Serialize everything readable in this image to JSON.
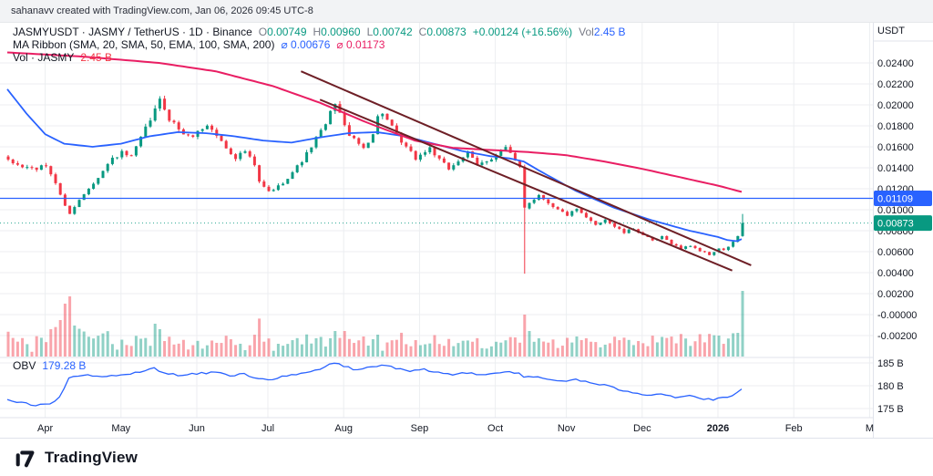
{
  "attribution": "sahanavv created with TradingView.com, Jan 06, 2026 09:45 UTC-8",
  "legend": {
    "symbol": {
      "title": "JASMYUSDT · JASMY / TetherUS · 1D · Binance",
      "ohlc": [
        {
          "k": "O",
          "v": "0.00749"
        },
        {
          "k": "H",
          "v": "0.00960"
        },
        {
          "k": "L",
          "v": "0.00742"
        },
        {
          "k": "C",
          "v": "0.00873"
        }
      ],
      "change": "+0.00124 (+16.56%)",
      "vol_label": "Vol",
      "vol_value": "2.45 B"
    },
    "ma_ribbon": {
      "title": "MA Ribbon (SMA, 20, SMA, 50, EMA, 100, SMA, 200)",
      "avg_1": "⌀ 0.00676",
      "avg_2": "⌀ 0.01173"
    },
    "volume": {
      "title": "Vol · JASMY",
      "value": "2.45 B"
    },
    "obv": {
      "title": "OBV",
      "value": "179.28 B"
    }
  },
  "axes": {
    "price": {
      "unit": "USDT",
      "ticks": [
        {
          "label": "0.02400",
          "v": 0.024
        },
        {
          "label": "0.02200",
          "v": 0.022
        },
        {
          "label": "0.02000",
          "v": 0.02
        },
        {
          "label": "0.01800",
          "v": 0.018
        },
        {
          "label": "0.01600",
          "v": 0.016
        },
        {
          "label": "0.01400",
          "v": 0.014
        },
        {
          "label": "0.01200",
          "v": 0.012
        },
        {
          "label": "0.01000",
          "v": 0.01
        },
        {
          "label": "0.00800",
          "v": 0.008
        },
        {
          "label": "0.00600",
          "v": 0.006
        },
        {
          "label": "0.00400",
          "v": 0.004
        },
        {
          "label": "0.00200",
          "v": 0.002
        },
        {
          "label": "-0.00000",
          "v": 0.0
        },
        {
          "label": "-0.00200",
          "v": -0.002
        }
      ],
      "badges": [
        {
          "text": "0.01109",
          "price": 0.01109,
          "color": "#2962ff"
        },
        {
          "text": "0.00873",
          "price": 0.00873,
          "color": "#089981"
        }
      ]
    },
    "obv_ticks": [
      {
        "label": "185 B",
        "v": 185
      },
      {
        "label": "180 B",
        "v": 180
      },
      {
        "label": "175 B",
        "v": 175
      }
    ],
    "time": [
      {
        "label": "Apr",
        "i": 8
      },
      {
        "label": "May",
        "i": 24
      },
      {
        "label": "Jun",
        "i": 40
      },
      {
        "label": "Jul",
        "i": 55
      },
      {
        "label": "Aug",
        "i": 71
      },
      {
        "label": "Sep",
        "i": 87
      },
      {
        "label": "Oct",
        "i": 103
      },
      {
        "label": "Nov",
        "i": 118
      },
      {
        "label": "Dec",
        "i": 134
      },
      {
        "label": "2026",
        "i": 150,
        "year": true
      },
      {
        "label": "Feb",
        "i": 166
      },
      {
        "label": "M",
        "i": 182
      }
    ]
  },
  "chart_data": {
    "type": "candlestick+volume+obv",
    "symbol": "JASMYUSDT",
    "description": "JASMY / TetherUS",
    "interval": "1D",
    "exchange": "Binance",
    "candle_count": 156,
    "price_axis_range": [
      -0.0028,
      0.0256
    ],
    "ohlc_current": {
      "open": 0.00749,
      "high": 0.0096,
      "low": 0.00742,
      "close": 0.00873,
      "change": "+0.00124",
      "change_pct": "+16.56%",
      "volume": "2.45 B",
      "obv": "179.28 B"
    },
    "ma_ribbon_averages": [
      0.00676,
      0.01173
    ],
    "closes_anchors": [
      [
        0,
        0.0146
      ],
      [
        3,
        0.0141
      ],
      [
        6,
        0.0139
      ],
      [
        8,
        0.0142
      ],
      [
        10,
        0.0126
      ],
      [
        12,
        0.0103
      ],
      [
        13,
        0.0097
      ],
      [
        15,
        0.0109
      ],
      [
        17,
        0.0121
      ],
      [
        20,
        0.0137
      ],
      [
        22,
        0.0149
      ],
      [
        24,
        0.0154
      ],
      [
        26,
        0.015
      ],
      [
        28,
        0.0168
      ],
      [
        30,
        0.0186
      ],
      [
        32,
        0.0204
      ],
      [
        33,
        0.0197
      ],
      [
        34,
        0.0187
      ],
      [
        36,
        0.0177
      ],
      [
        38,
        0.0169
      ],
      [
        40,
        0.0174
      ],
      [
        42,
        0.0181
      ],
      [
        44,
        0.0171
      ],
      [
        46,
        0.0159
      ],
      [
        48,
        0.015
      ],
      [
        50,
        0.0156
      ],
      [
        52,
        0.0142
      ],
      [
        53,
        0.0126
      ],
      [
        55,
        0.0117
      ],
      [
        57,
        0.0122
      ],
      [
        59,
        0.0131
      ],
      [
        61,
        0.0141
      ],
      [
        63,
        0.0153
      ],
      [
        65,
        0.0168
      ],
      [
        67,
        0.0181
      ],
      [
        69,
        0.0203
      ],
      [
        70,
        0.0192
      ],
      [
        71,
        0.0179
      ],
      [
        73,
        0.0166
      ],
      [
        75,
        0.0159
      ],
      [
        77,
        0.0173
      ],
      [
        78,
        0.0188
      ],
      [
        79,
        0.0193
      ],
      [
        81,
        0.0178
      ],
      [
        83,
        0.0164
      ],
      [
        85,
        0.0154
      ],
      [
        86,
        0.0149
      ],
      [
        87,
        0.0152
      ],
      [
        89,
        0.0159
      ],
      [
        91,
        0.0147
      ],
      [
        93,
        0.0139
      ],
      [
        95,
        0.0147
      ],
      [
        97,
        0.0154
      ],
      [
        99,
        0.0142
      ],
      [
        101,
        0.0147
      ],
      [
        103,
        0.0152
      ],
      [
        105,
        0.0159
      ],
      [
        107,
        0.0146
      ],
      [
        108,
        0.0141
      ],
      [
        109,
        0.0102
      ],
      [
        110,
        0.0107
      ],
      [
        112,
        0.0114
      ],
      [
        114,
        0.0107
      ],
      [
        116,
        0.01
      ],
      [
        118,
        0.0095
      ],
      [
        120,
        0.01
      ],
      [
        122,
        0.0092
      ],
      [
        124,
        0.0086
      ],
      [
        126,
        0.0091
      ],
      [
        128,
        0.0084
      ],
      [
        130,
        0.0078
      ],
      [
        132,
        0.0082
      ],
      [
        134,
        0.0076
      ],
      [
        136,
        0.007
      ],
      [
        138,
        0.0074
      ],
      [
        140,
        0.0068
      ],
      [
        142,
        0.0063
      ],
      [
        144,
        0.0066
      ],
      [
        146,
        0.0061
      ],
      [
        148,
        0.0057
      ],
      [
        150,
        0.0063
      ],
      [
        151,
        0.0061
      ],
      [
        152,
        0.0065
      ],
      [
        153,
        0.0069
      ],
      [
        154,
        0.00749
      ],
      [
        155,
        0.00873
      ]
    ],
    "special_candles": {
      "109": {
        "o": 0.0141,
        "h": 0.0143,
        "l": 0.0039,
        "c": 0.0102
      },
      "154": {
        "o": 0.00695,
        "h": 0.00752,
        "l": 0.00688,
        "c": 0.00749
      },
      "155": {
        "o": 0.00749,
        "h": 0.0096,
        "l": 0.00742,
        "c": 0.00873
      }
    },
    "volume_spikes": {
      "11": 40,
      "12": 58,
      "13": 66,
      "14": 34,
      "31": 36,
      "32": 30,
      "69": 28,
      "75": 22,
      "78": 24,
      "109": 46,
      "110": 28,
      "112": 20,
      "120": 22,
      "154": 26,
      "155": 72
    },
    "ma_pink_anchors": [
      [
        0,
        0.025
      ],
      [
        16,
        0.0246
      ],
      [
        32,
        0.024
      ],
      [
        44,
        0.0232
      ],
      [
        56,
        0.0218
      ],
      [
        66,
        0.0202
      ],
      [
        76,
        0.0183
      ],
      [
        86,
        0.0166
      ],
      [
        94,
        0.0159
      ],
      [
        102,
        0.0157
      ],
      [
        110,
        0.0155
      ],
      [
        118,
        0.0152
      ],
      [
        126,
        0.0146
      ],
      [
        134,
        0.0139
      ],
      [
        142,
        0.0131
      ],
      [
        150,
        0.0123
      ],
      [
        155,
        0.0117
      ]
    ],
    "ma_blue_anchors": [
      [
        0,
        0.0215
      ],
      [
        4,
        0.0192
      ],
      [
        8,
        0.0172
      ],
      [
        12,
        0.0163
      ],
      [
        18,
        0.016
      ],
      [
        24,
        0.0163
      ],
      [
        30,
        0.017
      ],
      [
        36,
        0.0174
      ],
      [
        42,
        0.0173
      ],
      [
        48,
        0.017
      ],
      [
        54,
        0.0166
      ],
      [
        60,
        0.0164
      ],
      [
        66,
        0.0169
      ],
      [
        72,
        0.0173
      ],
      [
        78,
        0.0174
      ],
      [
        84,
        0.017
      ],
      [
        90,
        0.0163
      ],
      [
        96,
        0.0156
      ],
      [
        102,
        0.0151
      ],
      [
        106,
        0.0149
      ],
      [
        109,
        0.0146
      ],
      [
        112,
        0.0138
      ],
      [
        116,
        0.0128
      ],
      [
        120,
        0.0118
      ],
      [
        124,
        0.011
      ],
      [
        128,
        0.0102
      ],
      [
        132,
        0.0096
      ],
      [
        136,
        0.009
      ],
      [
        140,
        0.0085
      ],
      [
        144,
        0.008
      ],
      [
        147,
        0.0077
      ],
      [
        150,
        0.0074
      ],
      [
        152,
        0.0071
      ],
      [
        154,
        0.007
      ],
      [
        155,
        0.0072
      ]
    ],
    "trend_lines": [
      {
        "from": [
          62,
          0.0232
        ],
        "to": [
          157,
          0.0047
        ]
      },
      {
        "from": [
          66,
          0.0205
        ],
        "to": [
          153,
          0.0042
        ]
      }
    ],
    "horizontal_line": {
      "price": 0.01109
    },
    "current_price_line": {
      "price": 0.00873
    },
    "obv_anchors": [
      [
        0,
        176.8
      ],
      [
        3,
        176.2
      ],
      [
        6,
        175.8
      ],
      [
        9,
        176.0
      ],
      [
        11,
        177.5
      ],
      [
        13,
        181.6
      ],
      [
        16,
        182.3
      ],
      [
        20,
        182.0
      ],
      [
        24,
        182.3
      ],
      [
        28,
        183.0
      ],
      [
        31,
        183.8
      ],
      [
        33,
        183.0
      ],
      [
        36,
        182.2
      ],
      [
        40,
        182.6
      ],
      [
        44,
        183.0
      ],
      [
        47,
        182.2
      ],
      [
        50,
        182.6
      ],
      [
        53,
        181.6
      ],
      [
        55,
        181.3
      ],
      [
        58,
        181.9
      ],
      [
        62,
        182.6
      ],
      [
        66,
        183.6
      ],
      [
        69,
        185.1
      ],
      [
        71,
        184.3
      ],
      [
        74,
        183.4
      ],
      [
        77,
        184.2
      ],
      [
        79,
        184.6
      ],
      [
        82,
        183.8
      ],
      [
        85,
        183.1
      ],
      [
        88,
        183.5
      ],
      [
        91,
        182.9
      ],
      [
        94,
        182.4
      ],
      [
        97,
        182.9
      ],
      [
        100,
        182.5
      ],
      [
        103,
        182.8
      ],
      [
        106,
        183.1
      ],
      [
        108,
        182.8
      ],
      [
        109,
        181.7
      ],
      [
        111,
        182.0
      ],
      [
        114,
        181.4
      ],
      [
        117,
        181.0
      ],
      [
        120,
        181.4
      ],
      [
        123,
        180.6
      ],
      [
        126,
        180.1
      ],
      [
        129,
        179.2
      ],
      [
        132,
        178.6
      ],
      [
        135,
        178.0
      ],
      [
        138,
        178.3
      ],
      [
        141,
        177.5
      ],
      [
        144,
        177.8
      ],
      [
        147,
        177.1
      ],
      [
        149,
        176.9
      ],
      [
        151,
        177.3
      ],
      [
        153,
        177.8
      ],
      [
        154,
        178.5
      ],
      [
        155,
        179.28
      ]
    ]
  },
  "colors": {
    "up": "#089981",
    "down": "#f23645",
    "accent_blue": "#2962ff",
    "ma_pink": "#e91e63",
    "trendline": "#6e1f26",
    "grid": "#eceef1",
    "border": "#e0e3eb",
    "axis_text": "#131722",
    "label_gray": "#787b86"
  },
  "footer": {
    "brand": "TradingView"
  }
}
